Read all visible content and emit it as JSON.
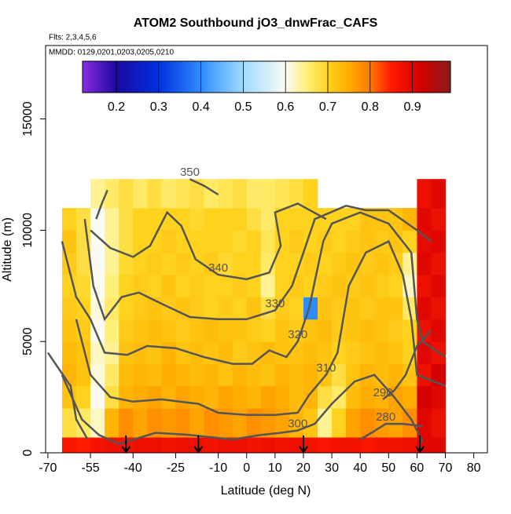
{
  "chart_data": {
    "type": "heatmap",
    "title": "ATOM2 Southbound jO3_dnwFrac_CAFS",
    "subtitle": "Flts: 2,3,4,5,6",
    "annotation": "MMDD: 0129,0201,0203,0205,0210",
    "x_label": "Latitude (deg N)",
    "y_label": "Altitude (m)",
    "xlim": [
      -70.8,
      84.8
    ],
    "ylim": [
      0,
      18300
    ],
    "xticks": [
      -70,
      -55,
      -40,
      -25,
      -10,
      0,
      10,
      20,
      30,
      40,
      50,
      60,
      70,
      80
    ],
    "yticks": [
      0,
      5000,
      10000,
      15000
    ],
    "colorbar_lim": [
      0.12,
      0.99
    ],
    "colorbar_ticks": [
      0.2,
      0.3,
      0.4,
      0.5,
      0.6,
      0.7,
      0.8,
      0.9
    ],
    "colorscale": [
      [
        0.12,
        "#8a2be2"
      ],
      [
        0.2,
        "#1a0aa0"
      ],
      [
        0.3,
        "#0030e0"
      ],
      [
        0.4,
        "#2f8cff"
      ],
      [
        0.5,
        "#9fdcff"
      ],
      [
        0.6,
        "#fbfbf4"
      ],
      [
        0.65,
        "#fff07a"
      ],
      [
        0.7,
        "#ffd21e"
      ],
      [
        0.75,
        "#ffad00"
      ],
      [
        0.8,
        "#ff7a00"
      ],
      [
        0.85,
        "#ff1a00"
      ],
      [
        0.92,
        "#d40000"
      ],
      [
        0.99,
        "#8b1a1a"
      ]
    ],
    "x_edges": [
      -65,
      -60,
      -55,
      -50,
      -45,
      -40,
      -35,
      -30,
      -25,
      -20,
      -15,
      -10,
      -5,
      0,
      5,
      10,
      15,
      20,
      25,
      30,
      35,
      40,
      45,
      50,
      55,
      60,
      65,
      70
    ],
    "y_edges": [
      0,
      700,
      2000,
      3000,
      4000,
      5000,
      6000,
      7000,
      8000,
      9000,
      10000,
      11000,
      12300
    ],
    "z": [
      [
        0.86,
        0.85,
        0.87,
        0.88,
        0.87,
        0.88,
        0.88,
        0.87,
        0.88,
        0.88,
        0.87,
        0.88,
        0.88,
        0.87,
        0.88,
        0.87,
        0.88,
        0.87,
        0.86,
        0.87,
        0.87,
        0.86,
        0.87,
        0.87,
        0.88,
        0.9,
        0.9
      ],
      [
        0.68,
        0.66,
        0.62,
        0.74,
        0.78,
        0.76,
        0.78,
        0.77,
        0.78,
        0.76,
        0.78,
        0.77,
        0.76,
        0.78,
        0.77,
        0.76,
        0.74,
        0.72,
        0.64,
        0.7,
        0.76,
        0.78,
        0.77,
        0.76,
        0.78,
        0.9,
        0.88
      ],
      [
        0.72,
        0.7,
        0.6,
        0.68,
        0.74,
        0.75,
        0.76,
        0.74,
        0.76,
        0.75,
        0.74,
        0.76,
        0.75,
        0.74,
        0.76,
        0.75,
        0.73,
        0.74,
        0.68,
        0.66,
        0.73,
        0.75,
        0.74,
        0.76,
        0.75,
        0.92,
        0.9
      ],
      [
        0.74,
        0.72,
        0.61,
        0.66,
        0.73,
        0.74,
        0.73,
        0.75,
        0.74,
        0.73,
        0.74,
        0.72,
        0.74,
        0.73,
        0.72,
        0.74,
        0.73,
        0.74,
        0.72,
        0.68,
        0.72,
        0.74,
        0.73,
        0.74,
        0.72,
        0.88,
        0.92
      ],
      [
        0.73,
        0.72,
        0.62,
        0.64,
        0.72,
        0.73,
        0.72,
        0.74,
        0.72,
        0.73,
        0.72,
        0.73,
        0.71,
        0.72,
        0.73,
        0.72,
        0.72,
        0.73,
        0.72,
        0.7,
        0.71,
        0.72,
        0.73,
        0.72,
        0.7,
        0.9,
        0.88
      ],
      [
        0.72,
        0.71,
        0.6,
        0.65,
        0.71,
        0.72,
        0.73,
        0.72,
        0.71,
        0.72,
        0.73,
        0.72,
        0.72,
        0.71,
        0.7,
        0.72,
        0.71,
        0.72,
        0.73,
        0.71,
        0.72,
        0.73,
        0.72,
        0.71,
        0.7,
        0.88,
        0.9
      ],
      [
        0.71,
        0.7,
        0.61,
        0.66,
        0.7,
        0.71,
        0.72,
        0.71,
        0.72,
        0.71,
        0.7,
        0.71,
        0.7,
        0.72,
        0.68,
        0.71,
        0.7,
        0.4,
        0.72,
        0.71,
        0.72,
        0.71,
        0.72,
        0.72,
        0.66,
        0.9,
        0.88
      ],
      [
        0.7,
        0.69,
        0.6,
        0.65,
        0.7,
        0.71,
        0.7,
        0.72,
        0.7,
        0.71,
        0.7,
        0.7,
        0.71,
        0.7,
        0.64,
        0.7,
        0.71,
        0.7,
        0.71,
        0.72,
        0.71,
        0.72,
        0.71,
        0.7,
        0.62,
        0.88,
        0.9
      ],
      [
        0.71,
        0.68,
        0.6,
        0.64,
        0.69,
        0.7,
        0.71,
        0.7,
        0.71,
        0.7,
        0.71,
        0.69,
        0.7,
        0.7,
        0.66,
        0.7,
        0.7,
        0.71,
        0.7,
        0.71,
        0.72,
        0.71,
        0.72,
        0.71,
        0.64,
        0.9,
        0.88
      ],
      [
        0.72,
        0.68,
        0.6,
        0.64,
        0.68,
        0.7,
        0.7,
        0.71,
        0.7,
        0.7,
        0.7,
        0.7,
        0.69,
        0.7,
        0.67,
        0.7,
        0.71,
        0.7,
        0.71,
        0.7,
        0.71,
        0.72,
        0.71,
        0.72,
        0.7,
        0.89,
        0.9
      ],
      [
        0.7,
        0.68,
        0.6,
        0.64,
        0.68,
        0.7,
        0.7,
        0.7,
        0.7,
        0.69,
        0.7,
        0.7,
        0.7,
        0.68,
        0.66,
        0.7,
        0.7,
        0.7,
        0.7,
        0.7,
        0.7,
        0.72,
        0.72,
        0.72,
        0.74,
        0.9,
        0.88
      ],
      [
        null,
        null,
        0.64,
        0.66,
        0.68,
        0.66,
        0.68,
        0.66,
        0.67,
        0.68,
        0.66,
        0.67,
        0.68,
        0.66,
        0.66,
        0.67,
        0.68,
        0.7,
        null,
        null,
        null,
        null,
        null,
        null,
        null,
        0.88,
        0.9
      ]
    ],
    "contours": [
      {
        "level": 350,
        "lat": [
          -53,
          -51,
          -49,
          null,
          -20,
          -15,
          -10
        ],
        "alt": [
          10500,
          11200,
          11800,
          null,
          12300,
          12000,
          11600
        ]
      },
      {
        "level": 340,
        "lat": [
          -55,
          -48,
          -40,
          -34,
          -28,
          -23,
          -18,
          -10,
          0,
          8,
          12,
          10,
          18,
          28
        ],
        "alt": [
          10000,
          9200,
          8800,
          9300,
          10800,
          10200,
          8700,
          8000,
          7800,
          8100,
          9300,
          10800,
          11200,
          10500
        ]
      },
      {
        "level": 330,
        "lat": [
          -57,
          -54,
          -50,
          -44,
          -38,
          -30,
          -20,
          -10,
          0,
          10,
          16,
          20,
          24,
          35,
          42,
          50,
          60,
          65
        ],
        "alt": [
          10500,
          7500,
          6000,
          7000,
          7200,
          6700,
          6100,
          6000,
          6000,
          6400,
          7500,
          9000,
          10500,
          11100,
          10900,
          10900,
          10000,
          9500
        ]
      },
      {
        "level": 320,
        "lat": [
          -65,
          -60,
          -55,
          -50,
          -42,
          -35,
          -25,
          -15,
          -5,
          2,
          8,
          14,
          18,
          22,
          27,
          30,
          40,
          50,
          58,
          60,
          62,
          70
        ],
        "alt": [
          9500,
          7000,
          6000,
          4500,
          4400,
          4800,
          4700,
          4300,
          4000,
          4000,
          4600,
          4300,
          5000,
          6500,
          9500,
          10300,
          10800,
          10300,
          9000,
          6000,
          5000,
          4300
        ]
      },
      {
        "level": 310,
        "lat": [
          -60,
          -55,
          -48,
          -40,
          -30,
          -17,
          -10,
          0,
          10,
          18,
          22,
          28,
          32,
          36,
          42,
          50,
          55,
          58,
          60,
          70
        ],
        "alt": [
          6000,
          3500,
          2500,
          2300,
          2400,
          2200,
          1800,
          1700,
          1700,
          1800,
          2600,
          3500,
          4500,
          7500,
          9000,
          9500,
          8000,
          6000,
          3500,
          3000
        ]
      },
      {
        "level": 300,
        "lat": [
          -65,
          -58,
          -52,
          -45,
          -32,
          -20,
          -5,
          5,
          12,
          18,
          24,
          30,
          38,
          45,
          52,
          58,
          62
        ],
        "alt": [
          3500,
          1500,
          800,
          400,
          900,
          800,
          600,
          800,
          900,
          1000,
          1300,
          2200,
          3200,
          3500,
          2500,
          1500,
          500
        ]
      },
      {
        "level": 290,
        "lat": [
          -70,
          -62,
          -60,
          -56,
          null,
          48,
          52,
          56,
          60,
          65
        ],
        "alt": [
          4500,
          3000,
          1500,
          600,
          null,
          2400,
          2800,
          3500,
          4800,
          5500
        ]
      },
      {
        "level": 280,
        "lat": [
          40,
          44,
          49,
          55,
          62
        ],
        "alt": [
          600,
          900,
          1300,
          1300,
          1200
        ]
      }
    ],
    "flight_markers": [
      -42.5,
      -17,
      20,
      61
    ]
  }
}
